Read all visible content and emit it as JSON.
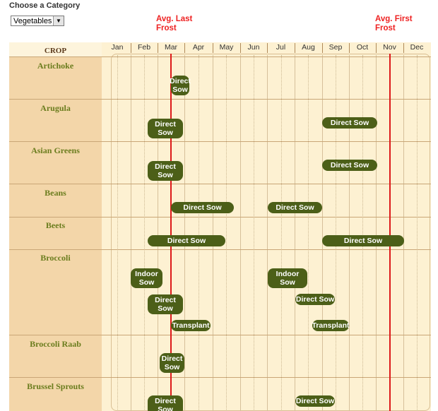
{
  "category": {
    "label": "Choose a Category",
    "selected": "Vegetables"
  },
  "frost": {
    "last": "Avg. Last\nFrost",
    "first": "Avg. First\nFrost",
    "color": "#dd1a1a"
  },
  "columns": {
    "crop_header": "CROP"
  },
  "months": [
    "Jan",
    "Feb",
    "Mar",
    "Apr",
    "May",
    "Jun",
    "Jul",
    "Aug",
    "Sep",
    "Oct",
    "Nov",
    "Dec"
  ],
  "crops": [
    {
      "name": "Artichoke",
      "bars": [
        {
          "label": "Direct\nSow"
        }
      ]
    },
    {
      "name": "Arugula",
      "bars": [
        {
          "label": "Direct\nSow"
        },
        {
          "label": "Direct Sow"
        }
      ]
    },
    {
      "name": "Asian Greens",
      "bars": [
        {
          "label": "Direct\nSow"
        },
        {
          "label": "Direct Sow"
        }
      ]
    },
    {
      "name": "Beans",
      "bars": [
        {
          "label": "Direct Sow"
        },
        {
          "label": "Direct Sow"
        }
      ]
    },
    {
      "name": "Beets",
      "bars": [
        {
          "label": "Direct Sow"
        },
        {
          "label": "Direct Sow"
        }
      ]
    },
    {
      "name": "Broccoli",
      "bars": [
        {
          "label": "Indoor\nSow"
        },
        {
          "label": "Indoor\nSow"
        },
        {
          "label": "Direct\nSow"
        },
        {
          "label": "Direct Sow"
        },
        {
          "label": "Transplant"
        },
        {
          "label": "Transplant"
        }
      ]
    },
    {
      "name": "Broccoli Raab",
      "bars": [
        {
          "label": "Direct\nSow"
        }
      ]
    },
    {
      "name": "Brussel Sprouts",
      "bars": [
        {
          "label": "Direct\nSow"
        },
        {
          "label": "Direct Sow"
        }
      ]
    }
  ]
}
